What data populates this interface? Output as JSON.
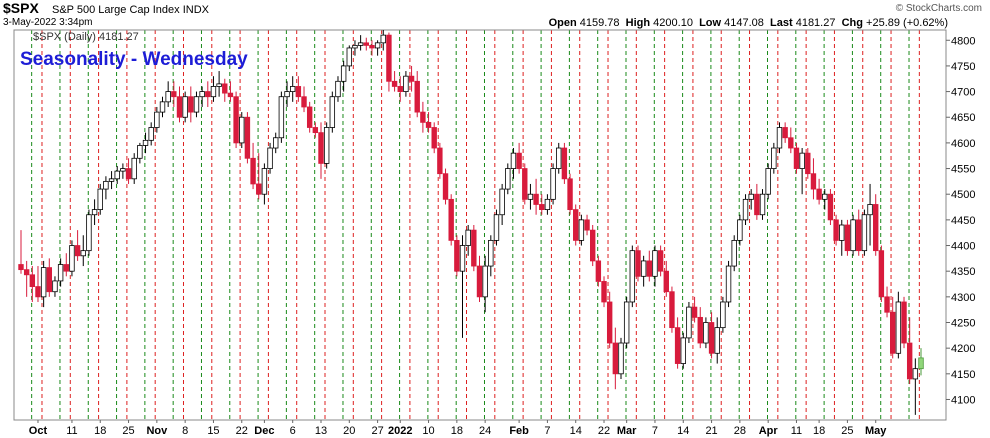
{
  "header": {
    "symbol": "$SPX",
    "name": "S&P 500 Large Cap Index",
    "exchange": "INDX",
    "datetime": "3-May-2022 3:34pm",
    "open_label": "Open",
    "open": "4159.78",
    "high_label": "High",
    "high": "4200.10",
    "low_label": "Low",
    "low": "4147.08",
    "last_label": "Last",
    "last": "4181.27",
    "chg_label": "Chg",
    "chg": "+25.89 (+0.62%)",
    "credit": "© StockCharts.com"
  },
  "chart_data": {
    "type": "candlestick",
    "title": "Seasonality - Wednesday",
    "legend": "$SPX (Daily) 4181.27",
    "legend_placement": "top-left",
    "ylim": [
      4060,
      4820
    ],
    "yticks": [
      4100,
      4150,
      4200,
      4250,
      4300,
      4350,
      4400,
      4450,
      4500,
      4550,
      4600,
      4650,
      4700,
      4750,
      4800
    ],
    "xtick_labels": [
      "Oct",
      "11",
      "18",
      "25",
      "Nov",
      "8",
      "15",
      "22",
      "Dec",
      "6",
      "13",
      "20",
      "27",
      "2022",
      "10",
      "18",
      "24",
      "Feb",
      "7",
      "14",
      "22",
      "Mar",
      "7",
      "14",
      "21",
      "28",
      "Apr",
      "11",
      "18",
      "25",
      "May"
    ],
    "xtick_index": [
      3,
      9,
      14,
      19,
      24,
      29,
      34,
      39,
      43,
      48,
      53,
      58,
      63,
      67,
      72,
      77,
      82,
      88,
      93,
      98,
      103,
      107,
      112,
      117,
      122,
      127,
      132,
      137,
      141,
      146,
      151
    ],
    "grid": "vertical dashed lines marking weeks; green lines on Wednesdays, red lines on Fridays",
    "colors": {
      "up": "#ffffff",
      "down": "#d81b3c",
      "up_border": "#000000",
      "last_highlight": "#90d67a",
      "green_line": "#1a8a1a",
      "red_line": "#dd2020",
      "title": "#1d1dd6"
    },
    "candles": [
      [
        4363,
        4430,
        4345,
        4353
      ],
      [
        4353,
        4370,
        4300,
        4343
      ],
      [
        4343,
        4360,
        4290,
        4320
      ],
      [
        4320,
        4360,
        4290,
        4300
      ],
      [
        4300,
        4370,
        4280,
        4357
      ],
      [
        4357,
        4375,
        4300,
        4310
      ],
      [
        4310,
        4340,
        4300,
        4331
      ],
      [
        4331,
        4375,
        4320,
        4363
      ],
      [
        4363,
        4385,
        4340,
        4350
      ],
      [
        4350,
        4410,
        4340,
        4400
      ],
      [
        4400,
        4430,
        4370,
        4380
      ],
      [
        4380,
        4420,
        4360,
        4390
      ],
      [
        4390,
        4470,
        4380,
        4460
      ],
      [
        4460,
        4490,
        4440,
        4470
      ],
      [
        4470,
        4520,
        4460,
        4510
      ],
      [
        4510,
        4535,
        4490,
        4525
      ],
      [
        4525,
        4545,
        4510,
        4530
      ],
      [
        4530,
        4555,
        4520,
        4545
      ],
      [
        4545,
        4560,
        4530,
        4550
      ],
      [
        4550,
        4570,
        4520,
        4530
      ],
      [
        4530,
        4580,
        4520,
        4570
      ],
      [
        4570,
        4600,
        4560,
        4595
      ],
      [
        4595,
        4620,
        4580,
        4605
      ],
      [
        4605,
        4640,
        4595,
        4630
      ],
      [
        4630,
        4670,
        4620,
        4660
      ],
      [
        4660,
        4690,
        4650,
        4680
      ],
      [
        4680,
        4720,
        4670,
        4700
      ],
      [
        4700,
        4720,
        4670,
        4690
      ],
      [
        4690,
        4710,
        4640,
        4650
      ],
      [
        4650,
        4700,
        4640,
        4690
      ],
      [
        4690,
        4710,
        4640,
        4660
      ],
      [
        4660,
        4700,
        4650,
        4690
      ],
      [
        4690,
        4710,
        4670,
        4700
      ],
      [
        4700,
        4720,
        4670,
        4690
      ],
      [
        4690,
        4730,
        4680,
        4710
      ],
      [
        4710,
        4740,
        4690,
        4715
      ],
      [
        4715,
        4725,
        4680,
        4697
      ],
      [
        4697,
        4720,
        4680,
        4690
      ],
      [
        4690,
        4700,
        4590,
        4600
      ],
      [
        4600,
        4660,
        4590,
        4650
      ],
      [
        4650,
        4660,
        4560,
        4570
      ],
      [
        4570,
        4600,
        4510,
        4520
      ],
      [
        4520,
        4580,
        4490,
        4500
      ],
      [
        4500,
        4560,
        4480,
        4550
      ],
      [
        4550,
        4600,
        4540,
        4590
      ],
      [
        4590,
        4620,
        4580,
        4610
      ],
      [
        4610,
        4700,
        4600,
        4690
      ],
      [
        4690,
        4720,
        4670,
        4700
      ],
      [
        4700,
        4730,
        4680,
        4710
      ],
      [
        4710,
        4730,
        4680,
        4690
      ],
      [
        4690,
        4710,
        4660,
        4670
      ],
      [
        4670,
        4680,
        4620,
        4630
      ],
      [
        4630,
        4640,
        4610,
        4620
      ],
      [
        4620,
        4640,
        4530,
        4560
      ],
      [
        4560,
        4640,
        4550,
        4630
      ],
      [
        4630,
        4700,
        4620,
        4690
      ],
      [
        4690,
        4730,
        4680,
        4720
      ],
      [
        4720,
        4760,
        4700,
        4750
      ],
      [
        4750,
        4790,
        4740,
        4785
      ],
      [
        4785,
        4800,
        4770,
        4790
      ],
      [
        4790,
        4810,
        4780,
        4795
      ],
      [
        4795,
        4805,
        4780,
        4790
      ],
      [
        4790,
        4800,
        4770,
        4785
      ],
      [
        4785,
        4800,
        4770,
        4795
      ],
      [
        4795,
        4820,
        4780,
        4810
      ],
      [
        4810,
        4815,
        4700,
        4720
      ],
      [
        4720,
        4740,
        4700,
        4710
      ],
      [
        4710,
        4730,
        4680,
        4700
      ],
      [
        4700,
        4740,
        4690,
        4730
      ],
      [
        4730,
        4750,
        4700,
        4720
      ],
      [
        4720,
        4740,
        4650,
        4660
      ],
      [
        4660,
        4680,
        4620,
        4640
      ],
      [
        4640,
        4660,
        4620,
        4630
      ],
      [
        4630,
        4640,
        4580,
        4590
      ],
      [
        4590,
        4600,
        4530,
        4540
      ],
      [
        4540,
        4550,
        4480,
        4490
      ],
      [
        4490,
        4500,
        4400,
        4410
      ],
      [
        4410,
        4420,
        4340,
        4350
      ],
      [
        4350,
        4420,
        4220,
        4400
      ],
      [
        4400,
        4440,
        4380,
        4430
      ],
      [
        4430,
        4440,
        4350,
        4360
      ],
      [
        4360,
        4380,
        4290,
        4300
      ],
      [
        4300,
        4380,
        4270,
        4360
      ],
      [
        4360,
        4420,
        4340,
        4410
      ],
      [
        4410,
        4470,
        4400,
        4460
      ],
      [
        4460,
        4520,
        4440,
        4510
      ],
      [
        4510,
        4560,
        4500,
        4550
      ],
      [
        4550,
        4590,
        4530,
        4580
      ],
      [
        4580,
        4600,
        4540,
        4550
      ],
      [
        4550,
        4560,
        4480,
        4490
      ],
      [
        4490,
        4520,
        4470,
        4500
      ],
      [
        4500,
        4530,
        4460,
        4480
      ],
      [
        4480,
        4500,
        4460,
        4470
      ],
      [
        4470,
        4500,
        4460,
        4490
      ],
      [
        4490,
        4560,
        4480,
        4550
      ],
      [
        4550,
        4600,
        4540,
        4590
      ],
      [
        4590,
        4600,
        4520,
        4530
      ],
      [
        4530,
        4540,
        4460,
        4470
      ],
      [
        4470,
        4480,
        4400,
        4410
      ],
      [
        4410,
        4460,
        4400,
        4450
      ],
      [
        4450,
        4460,
        4420,
        4430
      ],
      [
        4430,
        4440,
        4360,
        4370
      ],
      [
        4370,
        4380,
        4320,
        4330
      ],
      [
        4330,
        4340,
        4280,
        4290
      ],
      [
        4290,
        4310,
        4200,
        4210
      ],
      [
        4210,
        4240,
        4120,
        4150
      ],
      [
        4150,
        4220,
        4140,
        4210
      ],
      [
        4210,
        4300,
        4200,
        4290
      ],
      [
        4290,
        4400,
        4280,
        4390
      ],
      [
        4390,
        4400,
        4330,
        4340
      ],
      [
        4340,
        4380,
        4320,
        4370
      ],
      [
        4370,
        4390,
        4330,
        4340
      ],
      [
        4340,
        4400,
        4320,
        4390
      ],
      [
        4390,
        4400,
        4340,
        4350
      ],
      [
        4350,
        4370,
        4300,
        4310
      ],
      [
        4310,
        4320,
        4230,
        4240
      ],
      [
        4240,
        4260,
        4160,
        4170
      ],
      [
        4170,
        4230,
        4160,
        4220
      ],
      [
        4220,
        4290,
        4210,
        4280
      ],
      [
        4280,
        4300,
        4250,
        4260
      ],
      [
        4260,
        4280,
        4200,
        4210
      ],
      [
        4210,
        4260,
        4200,
        4250
      ],
      [
        4250,
        4270,
        4180,
        4190
      ],
      [
        4190,
        4260,
        4170,
        4240
      ],
      [
        4240,
        4300,
        4230,
        4290
      ],
      [
        4290,
        4370,
        4280,
        4360
      ],
      [
        4360,
        4420,
        4350,
        4410
      ],
      [
        4410,
        4460,
        4400,
        4450
      ],
      [
        4450,
        4500,
        4440,
        4490
      ],
      [
        4490,
        4510,
        4470,
        4500
      ],
      [
        4500,
        4520,
        4450,
        4460
      ],
      [
        4460,
        4510,
        4450,
        4500
      ],
      [
        4500,
        4560,
        4490,
        4550
      ],
      [
        4550,
        4600,
        4540,
        4590
      ],
      [
        4590,
        4640,
        4580,
        4630
      ],
      [
        4630,
        4640,
        4600,
        4610
      ],
      [
        4610,
        4630,
        4580,
        4590
      ],
      [
        4590,
        4600,
        4540,
        4550
      ],
      [
        4550,
        4590,
        4500,
        4580
      ],
      [
        4580,
        4590,
        4530,
        4540
      ],
      [
        4540,
        4570,
        4490,
        4510
      ],
      [
        4510,
        4530,
        4480,
        4490
      ],
      [
        4490,
        4510,
        4470,
        4500
      ],
      [
        4500,
        4510,
        4440,
        4450
      ],
      [
        4450,
        4460,
        4400,
        4410
      ],
      [
        4410,
        4450,
        4380,
        4440
      ],
      [
        4440,
        4450,
        4380,
        4390
      ],
      [
        4390,
        4460,
        4380,
        4450
      ],
      [
        4450,
        4470,
        4380,
        4390
      ],
      [
        4390,
        4470,
        4380,
        4460
      ],
      [
        4460,
        4520,
        4400,
        4480
      ],
      [
        4480,
        4500,
        4380,
        4390
      ],
      [
        4390,
        4400,
        4290,
        4300
      ],
      [
        4300,
        4320,
        4260,
        4270
      ],
      [
        4270,
        4300,
        4180,
        4190
      ],
      [
        4190,
        4310,
        4180,
        4290
      ],
      [
        4290,
        4300,
        4200,
        4210
      ],
      [
        4210,
        4260,
        4130,
        4140
      ],
      [
        4140,
        4180,
        4070,
        4160
      ],
      [
        4160,
        4200,
        4147,
        4181
      ]
    ]
  }
}
